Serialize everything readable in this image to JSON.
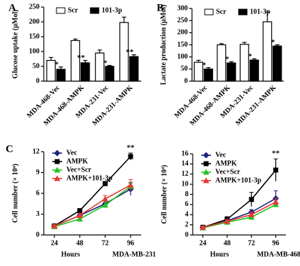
{
  "chart_data": [
    {
      "type": "bar",
      "panel": "A",
      "ylabel": "Glucose uptake (μMol)",
      "categories": [
        "MDA-468-Vec",
        "MDA-468-AMPK",
        "MDA-231-Vec",
        "MDA-231-AMPK"
      ],
      "series": [
        {
          "name": "Scr",
          "color": "#ffffff",
          "values": [
            70,
            137,
            95,
            198
          ],
          "errors": [
            10,
            5,
            10,
            18
          ],
          "annotations": [
            null,
            null,
            null,
            null
          ]
        },
        {
          "name": "101-3p",
          "color": "#000000",
          "values": [
            40,
            62,
            50,
            83
          ],
          "errors": [
            8,
            8,
            3,
            6
          ],
          "annotations": [
            "*",
            "**",
            "*",
            "**"
          ]
        }
      ],
      "ylim": [
        0,
        250
      ],
      "yticks": [
        0,
        50,
        100,
        150,
        200,
        250
      ],
      "legend": "top"
    },
    {
      "type": "bar",
      "panel": "B",
      "ylabel": "Lactate production (μMol)",
      "categories": [
        "MDA-468-Vec",
        "MDA-468-AMPK",
        "MDA-231-Vec",
        "MDA-231-AMPK"
      ],
      "series": [
        {
          "name": "Scr",
          "color": "#ffffff",
          "values": [
            78,
            150,
            152,
            245
          ],
          "errors": [
            8,
            5,
            8,
            40
          ],
          "annotations": [
            null,
            null,
            null,
            null
          ]
        },
        {
          "name": "101-3p",
          "color": "#000000",
          "values": [
            50,
            75,
            87,
            145
          ],
          "errors": [
            6,
            5,
            5,
            5
          ],
          "annotations": [
            "*",
            "*",
            "*",
            "*"
          ]
        }
      ],
      "ylim": [
        0,
        300
      ],
      "yticks": [
        0,
        50,
        100,
        150,
        200,
        250,
        300
      ],
      "legend": "top"
    },
    {
      "type": "line",
      "panel": "C",
      "ylabel": "Cell number (× 10⁴)",
      "xlabel": "Hours",
      "subtitle": "MDA-MB-231",
      "x": [
        24,
        48,
        72,
        96
      ],
      "series": [
        {
          "name": "Vec",
          "color": "#1a237e",
          "marker": "diamond",
          "values": [
            1.3,
            2.8,
            4.5,
            6.6
          ],
          "errors": [
            0.2,
            0.3,
            0.4,
            0.9
          ]
        },
        {
          "name": "AMPK",
          "color": "#000000",
          "marker": "square",
          "values": [
            1.3,
            3.5,
            7.4,
            11.3
          ],
          "errors": [
            0.2,
            0.3,
            0.3,
            0.5
          ]
        },
        {
          "name": "Vec+Scr",
          "color": "#22c322",
          "marker": "triangle",
          "values": [
            1.2,
            2.3,
            4.3,
            7.0
          ],
          "errors": [
            0.2,
            0.3,
            0.4,
            0.6
          ]
        },
        {
          "name": "AMPK+101-3p",
          "color": "#e53935",
          "marker": "triangle",
          "values": [
            1.3,
            2.8,
            5.2,
            7.2
          ],
          "errors": [
            0.2,
            0.3,
            0.5,
            0.8
          ]
        }
      ],
      "annotation": "**",
      "xlim": [
        14,
        106
      ],
      "xticks": [
        24,
        48,
        72,
        96
      ],
      "ylim": [
        0,
        12
      ],
      "yticks": [
        0,
        3,
        6,
        9,
        12
      ],
      "legend": "upper left"
    },
    {
      "type": "line",
      "xlabel": "Hours",
      "subtitle": "MDA-MB-468",
      "ylabel": "Cell number (× 10⁴)",
      "x": [
        24,
        48,
        72,
        96
      ],
      "series": [
        {
          "name": "Vec",
          "color": "#1a237e",
          "marker": "diamond",
          "values": [
            1.5,
            2.8,
            4.5,
            7.2
          ],
          "errors": [
            0.2,
            0.4,
            0.5,
            1.5
          ]
        },
        {
          "name": "AMPK",
          "color": "#000000",
          "marker": "square",
          "values": [
            1.5,
            3.1,
            7.0,
            12.8
          ],
          "errors": [
            0.2,
            0.5,
            1.4,
            2.2
          ]
        },
        {
          "name": "Vec+Scr",
          "color": "#22c322",
          "marker": "triangle",
          "values": [
            1.4,
            2.5,
            3.5,
            6.0
          ],
          "errors": [
            0.2,
            0.3,
            0.4,
            0.5
          ]
        },
        {
          "name": "AMPK+101-3p",
          "color": "#e53935",
          "marker": "triangle",
          "values": [
            1.5,
            2.7,
            4.0,
            6.5
          ],
          "errors": [
            0.2,
            0.3,
            0.5,
            0.7
          ]
        }
      ],
      "annotation": "**",
      "xlim": [
        14,
        106
      ],
      "xticks": [
        24,
        48,
        72,
        96
      ],
      "ylim": [
        0,
        16
      ],
      "yticks": [
        0,
        2,
        4,
        6,
        8,
        10,
        12,
        14,
        16
      ],
      "legend": "upper left"
    }
  ]
}
